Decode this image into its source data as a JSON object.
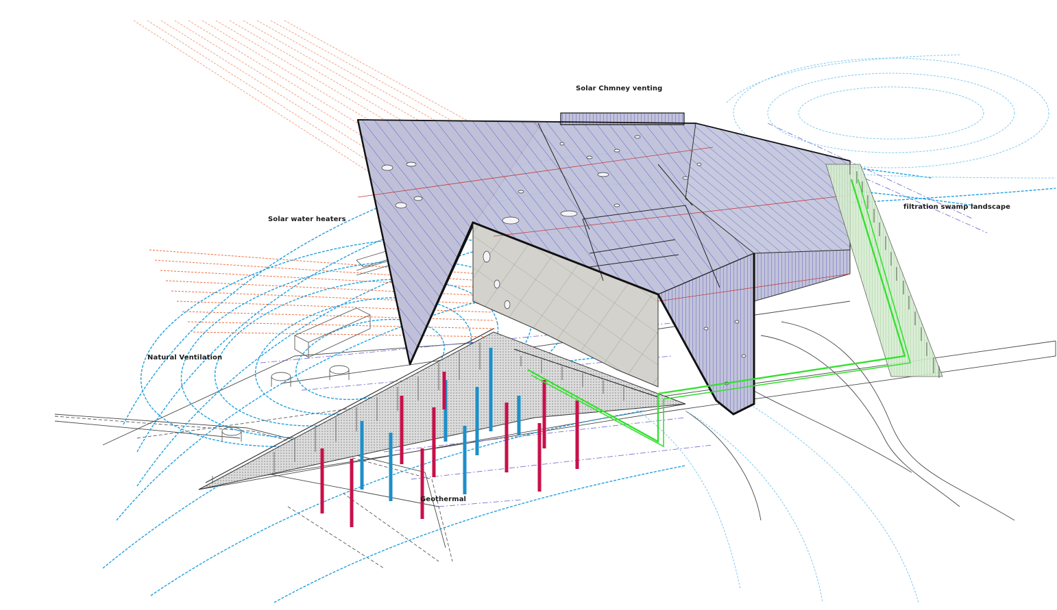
{
  "labels": {
    "solar_chimney": "Solar Chmney venting",
    "solar_water_heaters": "Solar water heaters",
    "filtration_swamp": "filtration swamp landscape",
    "natural_ventilation": "Natural Ventilation",
    "geothermal": "Geothermal"
  },
  "colors": {
    "background": "#ffffff",
    "building_outline": "#111111",
    "roof_fill": "#b9bcd6",
    "roof_hatch": "#3a3fbf",
    "wall_fill": "#d9d6cf",
    "wall_hatch_brown": "#7a6a55",
    "airflow": "#1f9fe0",
    "airflow_light": "#7fc8ee",
    "sun_rays": "#f06a3a",
    "sun_rays_light": "#f3a080",
    "geothermal_supply": "#1d8fc9",
    "geothermal_return": "#c8104a",
    "water_pipe": "#35e030",
    "swamp_fill": "#cfe8c8",
    "ground_lines": "#444444",
    "axis_lines": "#7a6fd0"
  },
  "icons": {
    "building": "building-axonometric",
    "pipes": "geothermal-pipe",
    "flow": "airflow-line"
  }
}
